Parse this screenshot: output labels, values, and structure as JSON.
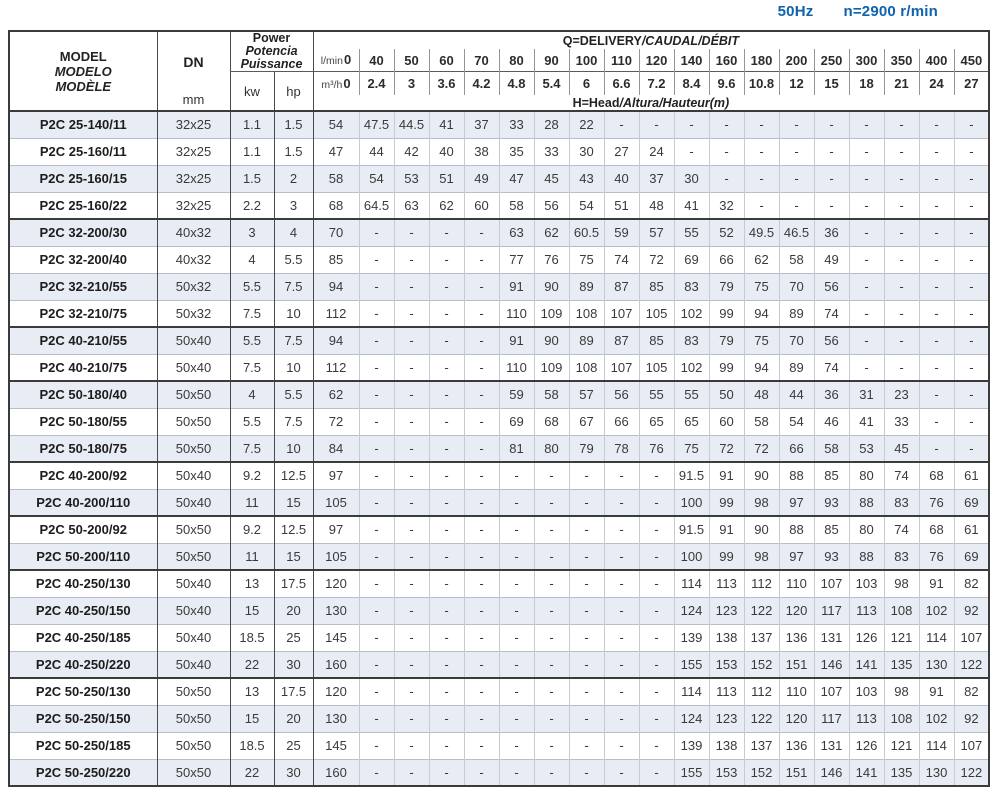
{
  "page": {
    "frequency": "50Hz",
    "speed": "n=2900 r/min"
  },
  "table": {
    "model_header": {
      "en": "MODEL",
      "es": "MODELO",
      "fr": "MODÈLE"
    },
    "dn_label": "DN",
    "dn_unit": "mm",
    "power_header": {
      "en": "Power",
      "es": "Potencia",
      "fr": "Puissance"
    },
    "power_unit_kw": "kw",
    "power_unit_hp": "hp",
    "q_header_parts": {
      "en": "Q=DELIVERY",
      "es": "/CAUDAL",
      "fr": "/DÉBIT"
    },
    "h_header_parts": {
      "en": "H=Head",
      "es": "/Altura",
      "fr": "/Hauteur(m)"
    },
    "flow_lmin_label": "l/min",
    "flow_m3h_label": "m³/h",
    "flow_lmin": [
      "0",
      "40",
      "50",
      "60",
      "70",
      "80",
      "90",
      "100",
      "110",
      "120",
      "140",
      "160",
      "180",
      "200",
      "250",
      "300",
      "350",
      "400",
      "450"
    ],
    "flow_m3h": [
      "0",
      "2.4",
      "3",
      "3.6",
      "4.2",
      "4.8",
      "5.4",
      "6",
      "6.6",
      "7.2",
      "8.4",
      "9.6",
      "10.8",
      "12",
      "15",
      "18",
      "21",
      "24",
      "27"
    ],
    "group_start_indices": [
      4,
      8,
      10,
      13,
      15,
      17,
      21
    ],
    "rows": [
      {
        "model": "P2C 25-140/11",
        "dn": "32x25",
        "kw": "1.1",
        "hp": "1.5",
        "head": [
          "54",
          "47.5",
          "44.5",
          "41",
          "37",
          "33",
          "28",
          "22",
          "-",
          "-",
          "-",
          "-",
          "-",
          "-",
          "-",
          "-",
          "-",
          "-",
          "-"
        ]
      },
      {
        "model": "P2C 25-160/11",
        "dn": "32x25",
        "kw": "1.1",
        "hp": "1.5",
        "head": [
          "47",
          "44",
          "42",
          "40",
          "38",
          "35",
          "33",
          "30",
          "27",
          "24",
          "-",
          "-",
          "-",
          "-",
          "-",
          "-",
          "-",
          "-",
          "-"
        ]
      },
      {
        "model": "P2C 25-160/15",
        "dn": "32x25",
        "kw": "1.5",
        "hp": "2",
        "head": [
          "58",
          "54",
          "53",
          "51",
          "49",
          "47",
          "45",
          "43",
          "40",
          "37",
          "30",
          "-",
          "-",
          "-",
          "-",
          "-",
          "-",
          "-",
          "-"
        ]
      },
      {
        "model": "P2C 25-160/22",
        "dn": "32x25",
        "kw": "2.2",
        "hp": "3",
        "head": [
          "68",
          "64.5",
          "63",
          "62",
          "60",
          "58",
          "56",
          "54",
          "51",
          "48",
          "41",
          "32",
          "-",
          "-",
          "-",
          "-",
          "-",
          "-",
          "-"
        ]
      },
      {
        "model": "P2C 32-200/30",
        "dn": "40x32",
        "kw": "3",
        "hp": "4",
        "head": [
          "70",
          "-",
          "-",
          "-",
          "-",
          "63",
          "62",
          "60.5",
          "59",
          "57",
          "55",
          "52",
          "49.5",
          "46.5",
          "36",
          "-",
          "-",
          "-",
          "-"
        ]
      },
      {
        "model": "P2C 32-200/40",
        "dn": "40x32",
        "kw": "4",
        "hp": "5.5",
        "head": [
          "85",
          "-",
          "-",
          "-",
          "-",
          "77",
          "76",
          "75",
          "74",
          "72",
          "69",
          "66",
          "62",
          "58",
          "49",
          "-",
          "-",
          "-",
          "-"
        ]
      },
      {
        "model": "P2C 32-210/55",
        "dn": "50x32",
        "kw": "5.5",
        "hp": "7.5",
        "head": [
          "94",
          "-",
          "-",
          "-",
          "-",
          "91",
          "90",
          "89",
          "87",
          "85",
          "83",
          "79",
          "75",
          "70",
          "56",
          "-",
          "-",
          "-",
          "-"
        ]
      },
      {
        "model": "P2C 32-210/75",
        "dn": "50x32",
        "kw": "7.5",
        "hp": "10",
        "head": [
          "112",
          "-",
          "-",
          "-",
          "-",
          "110",
          "109",
          "108",
          "107",
          "105",
          "102",
          "99",
          "94",
          "89",
          "74",
          "-",
          "-",
          "-",
          "-"
        ]
      },
      {
        "model": "P2C 40-210/55",
        "dn": "50x40",
        "kw": "5.5",
        "hp": "7.5",
        "head": [
          "94",
          "-",
          "-",
          "-",
          "-",
          "91",
          "90",
          "89",
          "87",
          "85",
          "83",
          "79",
          "75",
          "70",
          "56",
          "-",
          "-",
          "-",
          "-"
        ]
      },
      {
        "model": "P2C 40-210/75",
        "dn": "50x40",
        "kw": "7.5",
        "hp": "10",
        "head": [
          "112",
          "-",
          "-",
          "-",
          "-",
          "110",
          "109",
          "108",
          "107",
          "105",
          "102",
          "99",
          "94",
          "89",
          "74",
          "-",
          "-",
          "-",
          "-"
        ]
      },
      {
        "model": "P2C 50-180/40",
        "dn": "50x50",
        "kw": "4",
        "hp": "5.5",
        "head": [
          "62",
          "-",
          "-",
          "-",
          "-",
          "59",
          "58",
          "57",
          "56",
          "55",
          "55",
          "50",
          "48",
          "44",
          "36",
          "31",
          "23",
          "-",
          "-"
        ]
      },
      {
        "model": "P2C 50-180/55",
        "dn": "50x50",
        "kw": "5.5",
        "hp": "7.5",
        "head": [
          "72",
          "-",
          "-",
          "-",
          "-",
          "69",
          "68",
          "67",
          "66",
          "65",
          "65",
          "60",
          "58",
          "54",
          "46",
          "41",
          "33",
          "-",
          "-"
        ]
      },
      {
        "model": "P2C 50-180/75",
        "dn": "50x50",
        "kw": "7.5",
        "hp": "10",
        "head": [
          "84",
          "-",
          "-",
          "-",
          "-",
          "81",
          "80",
          "79",
          "78",
          "76",
          "75",
          "72",
          "72",
          "66",
          "58",
          "53",
          "45",
          "-",
          "-"
        ]
      },
      {
        "model": "P2C 40-200/92",
        "dn": "50x40",
        "kw": "9.2",
        "hp": "12.5",
        "head": [
          "97",
          "-",
          "-",
          "-",
          "-",
          "-",
          "-",
          "-",
          "-",
          "-",
          "91.5",
          "91",
          "90",
          "88",
          "85",
          "80",
          "74",
          "68",
          "61"
        ]
      },
      {
        "model": "P2C 40-200/110",
        "dn": "50x40",
        "kw": "11",
        "hp": "15",
        "head": [
          "105",
          "-",
          "-",
          "-",
          "-",
          "-",
          "-",
          "-",
          "-",
          "-",
          "100",
          "99",
          "98",
          "97",
          "93",
          "88",
          "83",
          "76",
          "69"
        ]
      },
      {
        "model": "P2C 50-200/92",
        "dn": "50x50",
        "kw": "9.2",
        "hp": "12.5",
        "head": [
          "97",
          "-",
          "-",
          "-",
          "-",
          "-",
          "-",
          "-",
          "-",
          "-",
          "91.5",
          "91",
          "90",
          "88",
          "85",
          "80",
          "74",
          "68",
          "61"
        ]
      },
      {
        "model": "P2C 50-200/110",
        "dn": "50x50",
        "kw": "11",
        "hp": "15",
        "head": [
          "105",
          "-",
          "-",
          "-",
          "-",
          "-",
          "-",
          "-",
          "-",
          "-",
          "100",
          "99",
          "98",
          "97",
          "93",
          "88",
          "83",
          "76",
          "69"
        ]
      },
      {
        "model": "P2C 40-250/130",
        "dn": "50x40",
        "kw": "13",
        "hp": "17.5",
        "head": [
          "120",
          "-",
          "-",
          "-",
          "-",
          "-",
          "-",
          "-",
          "-",
          "-",
          "114",
          "113",
          "112",
          "110",
          "107",
          "103",
          "98",
          "91",
          "82"
        ]
      },
      {
        "model": "P2C 40-250/150",
        "dn": "50x40",
        "kw": "15",
        "hp": "20",
        "head": [
          "130",
          "-",
          "-",
          "-",
          "-",
          "-",
          "-",
          "-",
          "-",
          "-",
          "124",
          "123",
          "122",
          "120",
          "117",
          "113",
          "108",
          "102",
          "92"
        ]
      },
      {
        "model": "P2C 40-250/185",
        "dn": "50x40",
        "kw": "18.5",
        "hp": "25",
        "head": [
          "145",
          "-",
          "-",
          "-",
          "-",
          "-",
          "-",
          "-",
          "-",
          "-",
          "139",
          "138",
          "137",
          "136",
          "131",
          "126",
          "121",
          "114",
          "107"
        ]
      },
      {
        "model": "P2C 40-250/220",
        "dn": "50x40",
        "kw": "22",
        "hp": "30",
        "head": [
          "160",
          "-",
          "-",
          "-",
          "-",
          "-",
          "-",
          "-",
          "-",
          "-",
          "155",
          "153",
          "152",
          "151",
          "146",
          "141",
          "135",
          "130",
          "122"
        ]
      },
      {
        "model": "P2C 50-250/130",
        "dn": "50x50",
        "kw": "13",
        "hp": "17.5",
        "head": [
          "120",
          "-",
          "-",
          "-",
          "-",
          "-",
          "-",
          "-",
          "-",
          "-",
          "114",
          "113",
          "112",
          "110",
          "107",
          "103",
          "98",
          "91",
          "82"
        ]
      },
      {
        "model": "P2C 50-250/150",
        "dn": "50x50",
        "kw": "15",
        "hp": "20",
        "head": [
          "130",
          "-",
          "-",
          "-",
          "-",
          "-",
          "-",
          "-",
          "-",
          "-",
          "124",
          "123",
          "122",
          "120",
          "117",
          "113",
          "108",
          "102",
          "92"
        ]
      },
      {
        "model": "P2C 50-250/185",
        "dn": "50x50",
        "kw": "18.5",
        "hp": "25",
        "head": [
          "145",
          "-",
          "-",
          "-",
          "-",
          "-",
          "-",
          "-",
          "-",
          "-",
          "139",
          "138",
          "137",
          "136",
          "131",
          "126",
          "121",
          "114",
          "107"
        ]
      },
      {
        "model": "P2C 50-250/220",
        "dn": "50x50",
        "kw": "22",
        "hp": "30",
        "head": [
          "160",
          "-",
          "-",
          "-",
          "-",
          "-",
          "-",
          "-",
          "-",
          "-",
          "155",
          "153",
          "152",
          "151",
          "146",
          "141",
          "135",
          "130",
          "122"
        ]
      }
    ]
  }
}
